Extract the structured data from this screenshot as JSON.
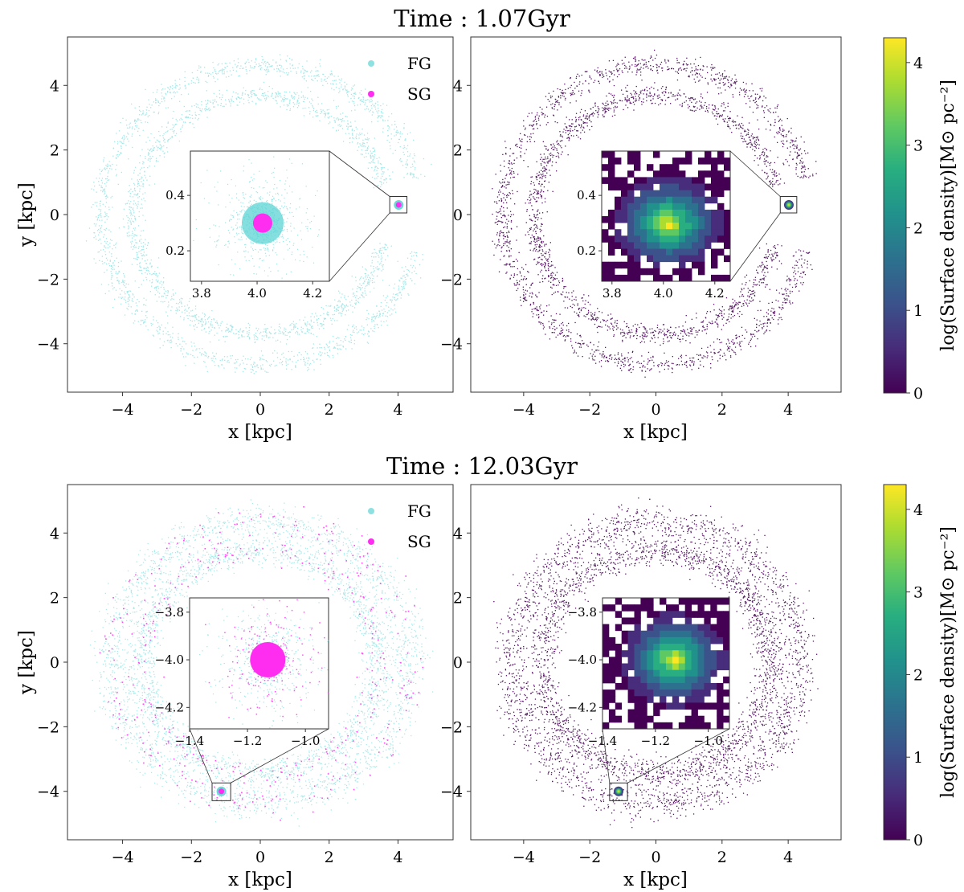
{
  "figure": {
    "colors": {
      "fg": "#5ed4d4",
      "sg": "#ff2df0",
      "frame": "#333333",
      "density_low": "#440154"
    },
    "colorbar": {
      "label": "log(Surface density)[M⊙ pc⁻²]",
      "ticks": [
        "0",
        "1",
        "2",
        "3",
        "4"
      ],
      "range": [
        0,
        4.3
      ],
      "colormap": "viridis"
    },
    "rows": [
      {
        "title": "Time : 1.07Gyr",
        "legend": {
          "fg": "FG",
          "sg": "SG"
        },
        "xlabel": "x [kpc]",
        "ylabel": "y [kpc]",
        "x_ticks": [
          "−4",
          "−2",
          "0",
          "2",
          "4"
        ],
        "y_ticks": [
          "4",
          "2",
          "0",
          "−2",
          "−4"
        ],
        "inset": {
          "x_ticks": [
            "3.8",
            "4.0",
            "4.2"
          ],
          "y_ticks": [
            "0.4",
            "0.2"
          ],
          "xlim": [
            3.76,
            4.26
          ],
          "ylim": [
            0.09,
            0.56
          ],
          "cluster_center": [
            4.02,
            0.3
          ]
        }
      },
      {
        "title": "Time : 12.03Gyr",
        "legend": {
          "fg": "FG",
          "sg": "SG"
        },
        "xlabel": "x [kpc]",
        "ylabel": "y [kpc]",
        "x_ticks": [
          "−4",
          "−2",
          "0",
          "2",
          "4"
        ],
        "y_ticks": [
          "4",
          "2",
          "0",
          "−2",
          "−4"
        ],
        "inset": {
          "x_ticks": [
            "−1.4",
            "−1.2",
            "−1.0"
          ],
          "y_ticks": [
            "−3.8",
            "−4.0",
            "−4.2"
          ],
          "xlim": [
            -1.4,
            -0.92
          ],
          "ylim": [
            -4.29,
            -3.74
          ],
          "cluster_center": [
            -1.13,
            -4.0
          ]
        }
      }
    ]
  },
  "chart_data": [
    {
      "type": "scatter",
      "title": "Time : 1.07Gyr",
      "panel": "particles",
      "xlabel": "x [kpc]",
      "ylabel": "y [kpc]",
      "xlim": [
        -5.6,
        5.6
      ],
      "ylim": [
        -5.5,
        5.5
      ],
      "series": [
        {
          "name": "FG",
          "description_values": {
            "cluster_center": [
              4.02,
              0.3
            ]
          }
        },
        {
          "name": "SG",
          "description_values": {
            "cluster_center": [
              4.02,
              0.3
            ]
          }
        }
      ],
      "structure": {
        "rings": [
          {
            "radius": 4.7
          },
          {
            "radius": 3.7
          }
        ],
        "arc_gap_deg": [
          -15,
          15
        ]
      }
    },
    {
      "type": "heatmap",
      "title": "Time : 1.07Gyr",
      "panel": "surface-density",
      "xlabel": "x [kpc]",
      "ylabel": "y [kpc]",
      "xlim": [
        -5.6,
        5.6
      ],
      "ylim": [
        -5.5,
        5.5
      ],
      "colorbar_range": [
        0,
        4.3
      ]
    },
    {
      "type": "scatter",
      "title": "Time : 12.03Gyr",
      "panel": "particles",
      "xlabel": "x [kpc]",
      "ylabel": "y [kpc]",
      "xlim": [
        -5.6,
        5.6
      ],
      "ylim": [
        -5.5,
        5.5
      ],
      "series": [
        {
          "name": "FG",
          "description_values": {
            "cluster_center": [
              -1.13,
              -4.0
            ]
          }
        },
        {
          "name": "SG",
          "description_values": {
            "cluster_center": [
              -1.13,
              -4.0
            ]
          }
        }
      ],
      "structure": {
        "rings": [
          {
            "radius": 4.3
          },
          {
            "radius": 3.5
          }
        ],
        "arc_gap_deg": null
      }
    },
    {
      "type": "heatmap",
      "title": "Time : 12.03Gyr",
      "panel": "surface-density",
      "xlabel": "x [kpc]",
      "ylabel": "y [kpc]",
      "xlim": [
        -5.6,
        5.6
      ],
      "ylim": [
        -5.5,
        5.5
      ],
      "colorbar_range": [
        0,
        4.3
      ]
    }
  ]
}
